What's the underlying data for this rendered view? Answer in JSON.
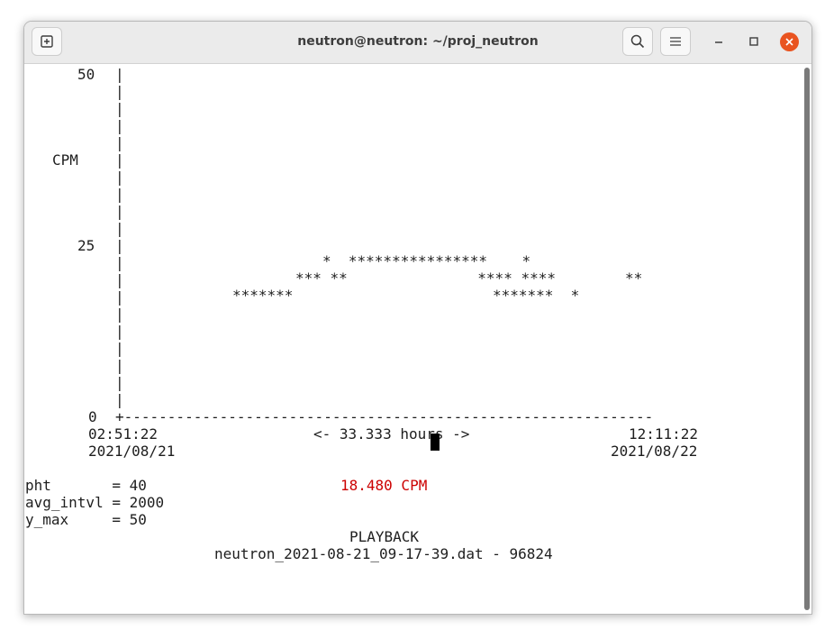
{
  "window": {
    "title": "neutron@neutron: ~/proj_neutron",
    "icons": {
      "new_tab": "new-tab-icon",
      "search": "search-icon",
      "menu": "hamburger-menu-icon",
      "minimize": "minimize-icon",
      "maximize": "maximize-icon",
      "close": "close-icon"
    },
    "close_color": "#e95420"
  },
  "terminal": {
    "y_tick_top": "50",
    "y_tick_mid": "25",
    "y_tick_bottom": "0",
    "y_label": "CPM",
    "axis_bar": "|",
    "x_axis_line": "+-------------------------------------------------------------",
    "plot_rows": [
      "*  ****************    *",
      "*** **               **** ****        **",
      "*******                       *******  *"
    ],
    "x_start_time": "02:51:22",
    "x_start_date": "2021/08/21",
    "x_span": "<- 33.333 hours ->",
    "x_end_time": "12:11:22",
    "x_end_date": "2021/08/22",
    "params": [
      "pht       = 40",
      "avg_intvl = 2000",
      "y_max     = 50"
    ],
    "current_cpm": "18.480 CPM",
    "current_cpm_color": "#cc0000",
    "mode": "PLAYBACK",
    "file_line": "neutron_2021-08-21_09-17-39.dat - 96824"
  }
}
